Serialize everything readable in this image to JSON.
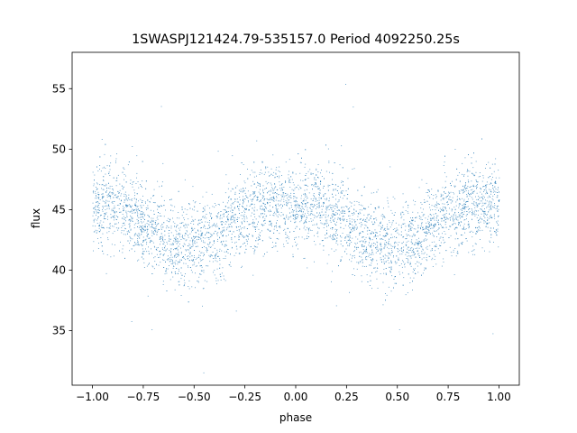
{
  "chart_data": {
    "type": "scatter",
    "title": "1SWASPJ121424.79-535157.0 Period 4092250.25s",
    "xlabel": "phase",
    "ylabel": "flux",
    "xlim": [
      -1.1,
      1.1
    ],
    "ylim": [
      30.5,
      58.0
    ],
    "xticks": [
      -1.0,
      -0.75,
      -0.5,
      -0.25,
      0.0,
      0.25,
      0.5,
      0.75,
      1.0
    ],
    "xtick_labels": [
      "−1.00",
      "−0.75",
      "−0.50",
      "−0.25",
      "0.00",
      "0.25",
      "0.50",
      "0.75",
      "1.00"
    ],
    "yticks": [
      35,
      40,
      45,
      50,
      55
    ],
    "ytick_labels": [
      "35",
      "40",
      "45",
      "50",
      "55"
    ],
    "grid": false,
    "marker_color": "#1f77b4",
    "series": [
      {
        "points_note": "phase-folded light curve, points repeat with period 1 in phase",
        "mean_profile": {
          "phase": [
            0.0,
            0.05,
            0.1,
            0.15,
            0.2,
            0.25,
            0.3,
            0.35,
            0.4,
            0.45,
            0.5,
            0.55,
            0.6,
            0.65,
            0.7,
            0.75,
            0.8,
            0.85,
            0.9,
            0.95,
            1.0
          ],
          "flux": [
            45.5,
            45.3,
            45.6,
            45.0,
            44.6,
            44.0,
            43.4,
            42.7,
            42.3,
            42.0,
            42.4,
            42.6,
            42.4,
            43.5,
            44.3,
            44.8,
            45.0,
            45.3,
            45.2,
            45.4,
            45.5
          ]
        },
        "scatter_sd": 1.7
      }
    ]
  }
}
